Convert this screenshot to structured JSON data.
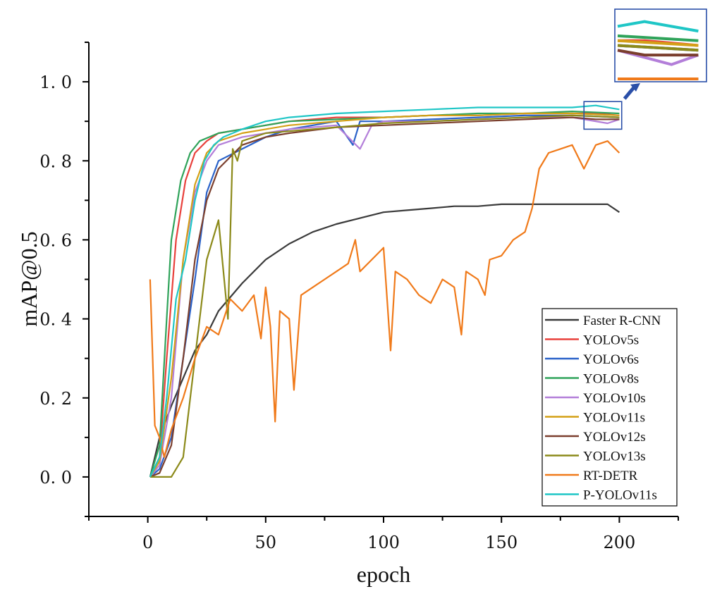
{
  "chart_data": {
    "type": "line",
    "xlabel": "epoch",
    "ylabel": "mAP@0.5",
    "xlim": [
      -25,
      225
    ],
    "ylim": [
      -0.1,
      1.1
    ],
    "xticks": [
      0,
      50,
      100,
      150,
      200
    ],
    "xtick_labels": [
      "0",
      "50",
      "100",
      "150",
      "200"
    ],
    "yticks": [
      0.0,
      0.2,
      0.4,
      0.6,
      0.8,
      1.0
    ],
    "ytick_labels": [
      "0. 0",
      "0. 2",
      "0. 4",
      "0. 6",
      "0. 8",
      "1. 0"
    ],
    "legend_position": "bottom-right",
    "inset": {
      "x_range": [
        185,
        201
      ],
      "y_range": [
        0.88,
        0.95
      ]
    },
    "series": [
      {
        "name": "Faster R-CNN",
        "color": "#3a3a3a",
        "x": [
          1,
          5,
          10,
          15,
          20,
          25,
          30,
          40,
          50,
          60,
          70,
          80,
          90,
          100,
          110,
          120,
          130,
          140,
          150,
          160,
          170,
          180,
          190,
          195,
          200
        ],
        "y": [
          0.0,
          0.1,
          0.18,
          0.25,
          0.32,
          0.36,
          0.42,
          0.49,
          0.55,
          0.59,
          0.62,
          0.64,
          0.655,
          0.67,
          0.675,
          0.68,
          0.685,
          0.685,
          0.69,
          0.69,
          0.69,
          0.69,
          0.69,
          0.69,
          0.67
        ]
      },
      {
        "name": "YOLOv5s",
        "color": "#e8413c",
        "x": [
          1,
          5,
          8,
          12,
          16,
          20,
          25,
          30,
          40,
          50,
          60,
          70,
          80,
          100,
          120,
          140,
          160,
          180,
          190,
          200
        ],
        "y": [
          0.0,
          0.05,
          0.3,
          0.6,
          0.75,
          0.82,
          0.85,
          0.87,
          0.88,
          0.89,
          0.9,
          0.905,
          0.91,
          0.91,
          0.915,
          0.915,
          0.92,
          0.92,
          0.92,
          0.915
        ]
      },
      {
        "name": "YOLOv6s",
        "color": "#2a62c9",
        "x": [
          1,
          5,
          10,
          15,
          20,
          25,
          30,
          40,
          50,
          60,
          70,
          80,
          87,
          90,
          100,
          120,
          140,
          160,
          180,
          200
        ],
        "y": [
          0.0,
          0.02,
          0.1,
          0.3,
          0.5,
          0.72,
          0.8,
          0.83,
          0.86,
          0.88,
          0.89,
          0.9,
          0.84,
          0.9,
          0.9,
          0.905,
          0.91,
          0.915,
          0.915,
          0.91
        ]
      },
      {
        "name": "YOLOv8s",
        "color": "#2fa35a",
        "x": [
          1,
          5,
          8,
          10,
          14,
          18,
          22,
          26,
          30,
          40,
          50,
          60,
          80,
          100,
          120,
          140,
          160,
          180,
          200
        ],
        "y": [
          0.0,
          0.08,
          0.4,
          0.6,
          0.75,
          0.82,
          0.85,
          0.86,
          0.87,
          0.88,
          0.89,
          0.9,
          0.905,
          0.91,
          0.915,
          0.92,
          0.92,
          0.925,
          0.92
        ]
      },
      {
        "name": "YOLOv10s",
        "color": "#b37ed9",
        "x": [
          1,
          5,
          10,
          15,
          20,
          25,
          30,
          40,
          50,
          60,
          80,
          90,
          95,
          100,
          120,
          140,
          160,
          180,
          195,
          200
        ],
        "y": [
          0.0,
          0.03,
          0.2,
          0.55,
          0.72,
          0.8,
          0.84,
          0.86,
          0.87,
          0.88,
          0.89,
          0.83,
          0.89,
          0.9,
          0.9,
          0.905,
          0.91,
          0.91,
          0.895,
          0.905
        ]
      },
      {
        "name": "YOLOv11s",
        "color": "#d4a017",
        "x": [
          1,
          5,
          10,
          15,
          20,
          25,
          30,
          40,
          50,
          60,
          80,
          100,
          120,
          140,
          160,
          180,
          200
        ],
        "y": [
          0.0,
          0.04,
          0.25,
          0.55,
          0.74,
          0.82,
          0.85,
          0.87,
          0.88,
          0.89,
          0.9,
          0.91,
          0.915,
          0.915,
          0.92,
          0.92,
          0.915
        ]
      },
      {
        "name": "YOLOv12s",
        "color": "#7b3f2e",
        "x": [
          1,
          5,
          10,
          15,
          20,
          25,
          30,
          40,
          50,
          60,
          80,
          100,
          120,
          140,
          160,
          180,
          190,
          200
        ],
        "y": [
          0.0,
          0.01,
          0.08,
          0.3,
          0.55,
          0.7,
          0.78,
          0.84,
          0.86,
          0.87,
          0.885,
          0.89,
          0.895,
          0.9,
          0.905,
          0.91,
          0.905,
          0.905
        ]
      },
      {
        "name": "YOLOv13s",
        "color": "#8c8a1a",
        "x": [
          1,
          5,
          10,
          15,
          20,
          25,
          30,
          34,
          36,
          38,
          40,
          50,
          60,
          80,
          100,
          120,
          140,
          160,
          180,
          200
        ],
        "y": [
          0.0,
          0.0,
          0.0,
          0.05,
          0.3,
          0.55,
          0.65,
          0.4,
          0.83,
          0.8,
          0.85,
          0.87,
          0.875,
          0.885,
          0.895,
          0.9,
          0.905,
          0.91,
          0.915,
          0.91
        ]
      },
      {
        "name": "RT-DETR",
        "color": "#f07a1a",
        "x": [
          1,
          3,
          5,
          7,
          10,
          15,
          20,
          25,
          30,
          35,
          40,
          45,
          48,
          50,
          52,
          54,
          56,
          60,
          62,
          65,
          70,
          75,
          80,
          85,
          88,
          90,
          95,
          100,
          103,
          105,
          110,
          115,
          120,
          125,
          130,
          133,
          135,
          140,
          143,
          145,
          150,
          155,
          160,
          163,
          166,
          170,
          175,
          180,
          185,
          190,
          195,
          200
        ],
        "y": [
          0.5,
          0.13,
          0.1,
          0.05,
          0.12,
          0.2,
          0.3,
          0.38,
          0.36,
          0.45,
          0.42,
          0.46,
          0.35,
          0.48,
          0.38,
          0.14,
          0.42,
          0.4,
          0.22,
          0.46,
          0.48,
          0.5,
          0.52,
          0.54,
          0.6,
          0.52,
          0.55,
          0.58,
          0.32,
          0.52,
          0.5,
          0.46,
          0.44,
          0.5,
          0.48,
          0.36,
          0.52,
          0.5,
          0.46,
          0.55,
          0.56,
          0.6,
          0.62,
          0.68,
          0.78,
          0.82,
          0.83,
          0.84,
          0.78,
          0.84,
          0.85,
          0.82
        ]
      },
      {
        "name": "P-YOLOv11s",
        "color": "#1fc6c6",
        "x": [
          1,
          5,
          8,
          12,
          16,
          20,
          24,
          28,
          32,
          40,
          50,
          60,
          80,
          100,
          120,
          140,
          160,
          180,
          190,
          200
        ],
        "y": [
          0.0,
          0.05,
          0.2,
          0.45,
          0.55,
          0.7,
          0.8,
          0.84,
          0.86,
          0.88,
          0.9,
          0.91,
          0.92,
          0.925,
          0.93,
          0.935,
          0.935,
          0.935,
          0.94,
          0.93
        ]
      }
    ]
  }
}
